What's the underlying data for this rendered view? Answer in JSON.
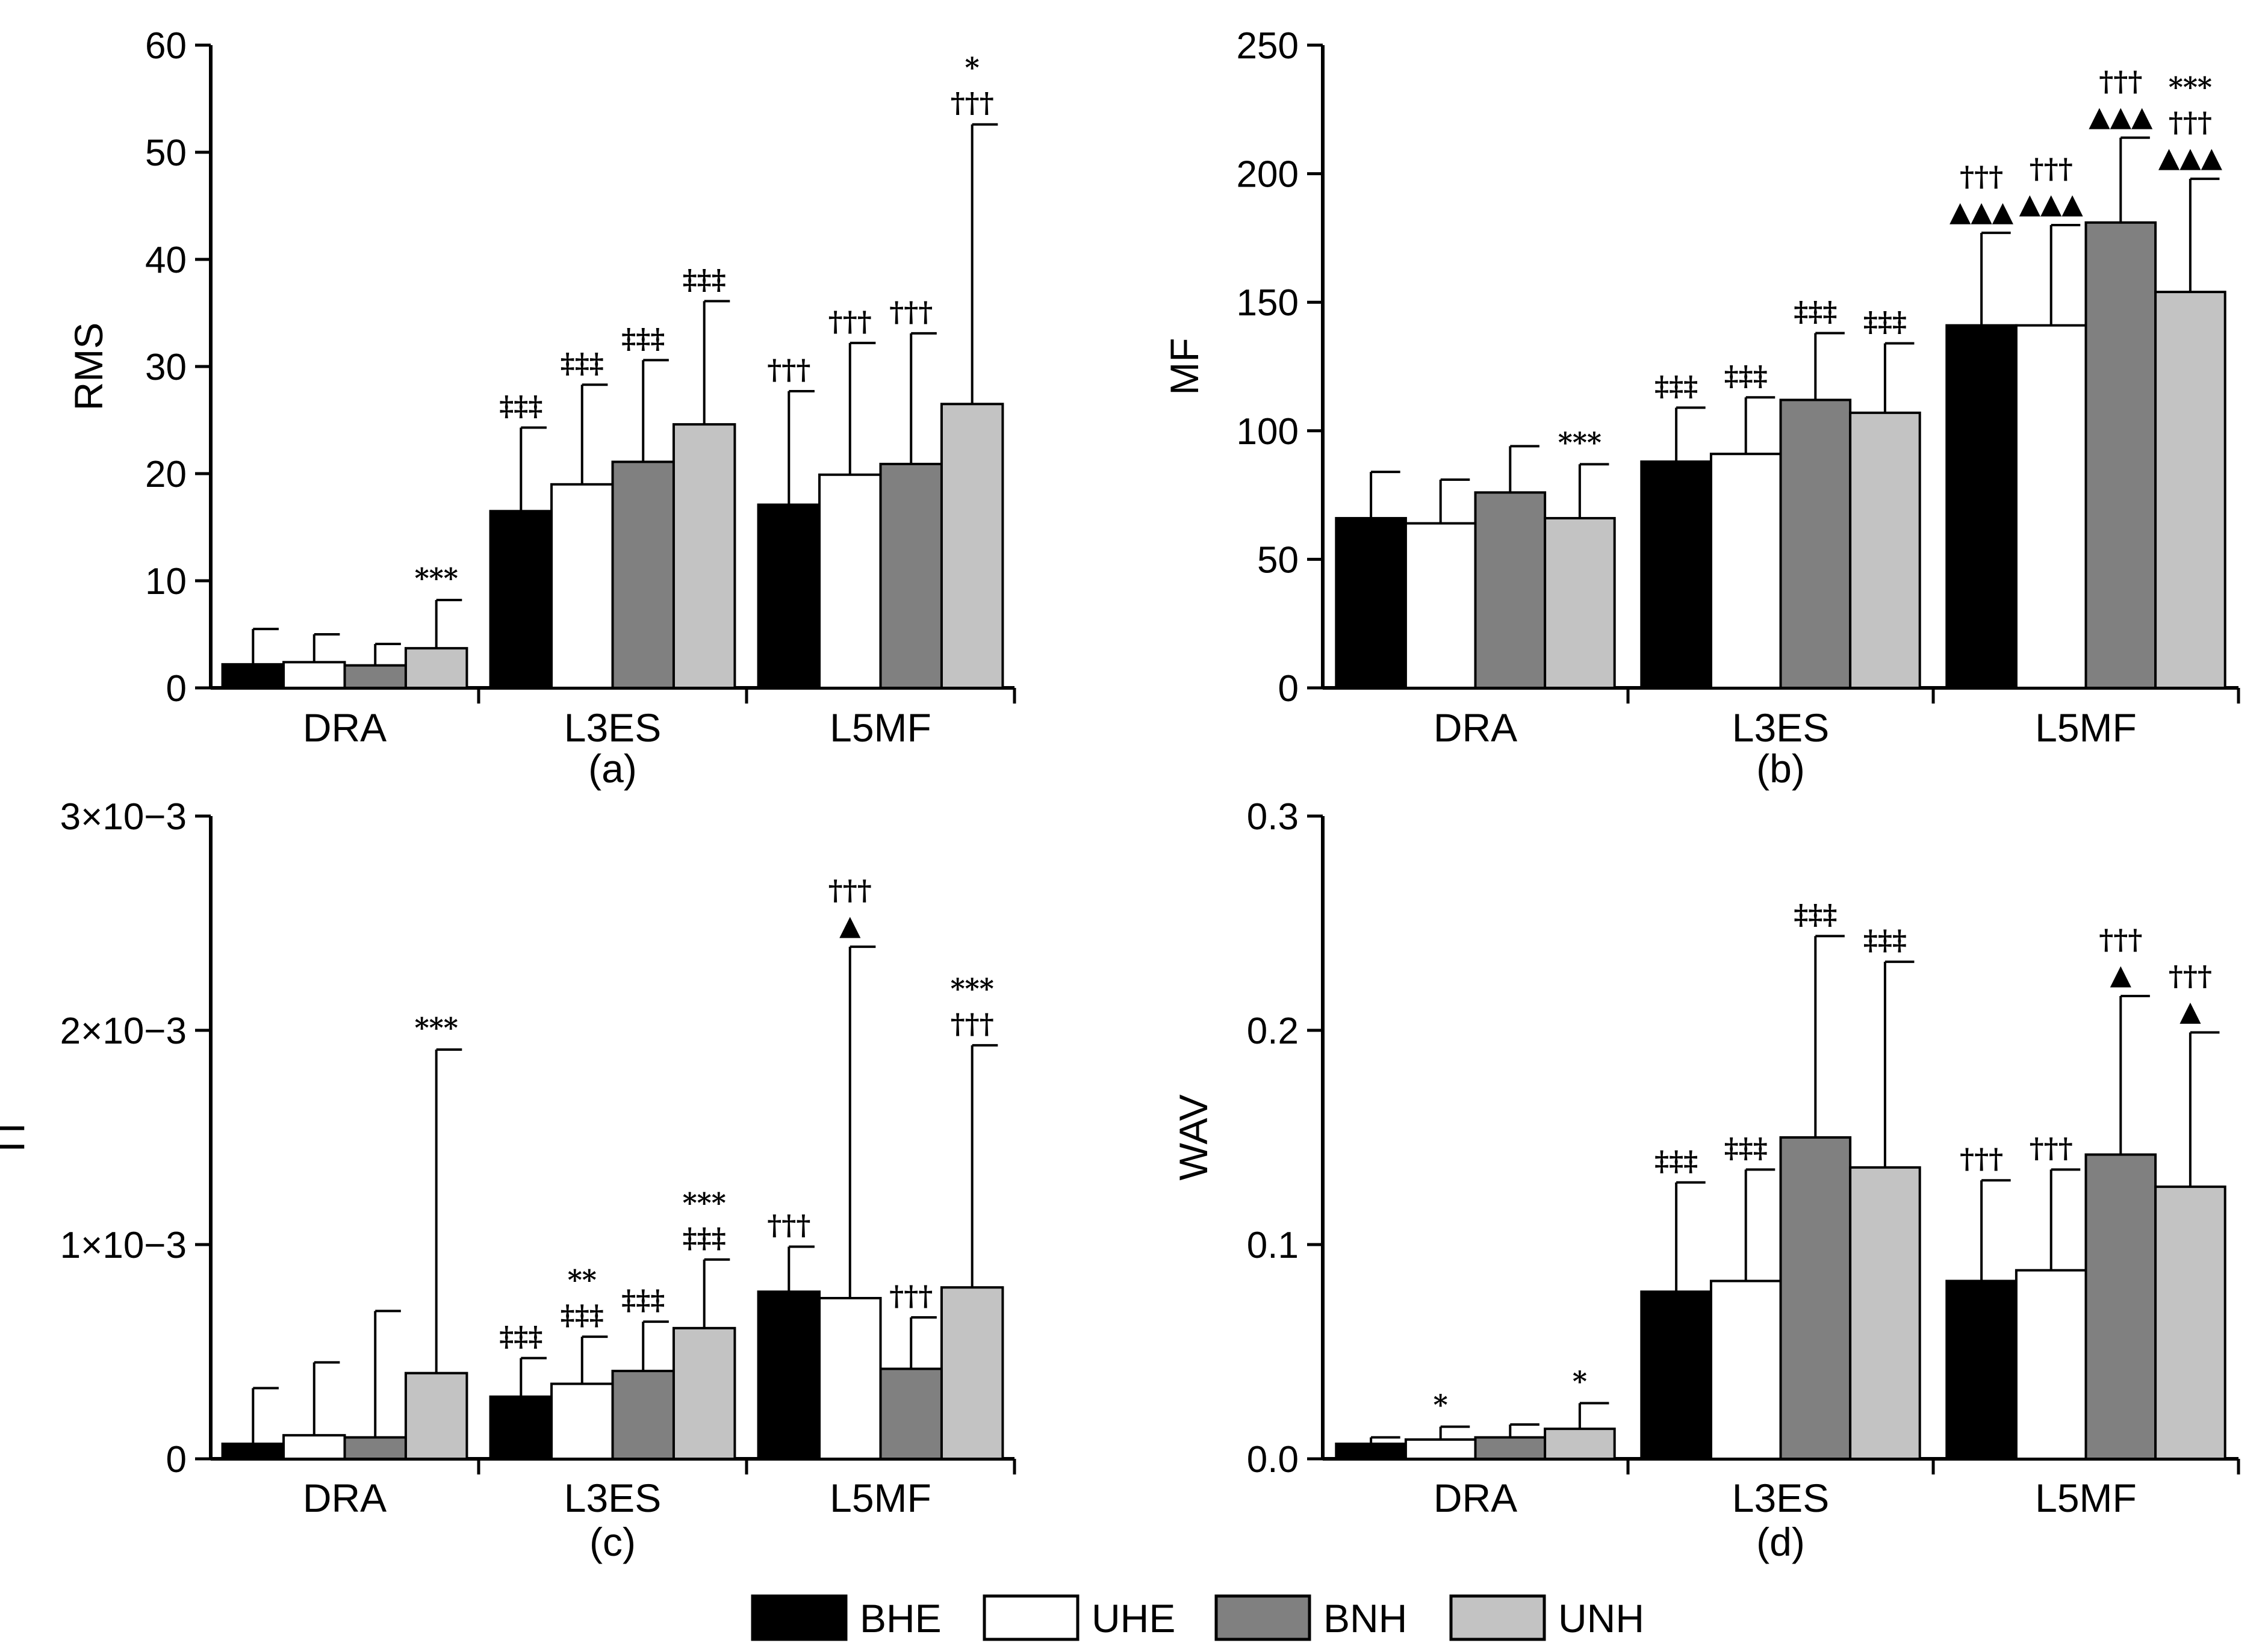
{
  "colors": {
    "BHE": "#000000",
    "UHE": "#ffffff",
    "BNH": "#808080",
    "UNH": "#c3c3c3"
  },
  "legend": [
    "BHE",
    "UHE",
    "BNH",
    "UNH"
  ],
  "chart_data": [
    {
      "type": "bar",
      "panel": "(a)",
      "ylabel": "RMS",
      "ylim": [
        0,
        60
      ],
      "yticks": [
        0,
        10,
        20,
        30,
        40,
        50,
        60
      ],
      "ytick_labels": [
        "0",
        "10",
        "20",
        "30",
        "40",
        "50",
        "60"
      ],
      "categories": [
        "DRA",
        "L3ES",
        "L5MF"
      ],
      "series": [
        {
          "name": "BHE",
          "values": [
            2.2,
            16.5,
            17.1
          ],
          "errors": [
            5.5,
            24.3,
            27.7
          ],
          "annotations": [
            [],
            [
              "‡‡‡"
            ],
            [
              "†††"
            ]
          ]
        },
        {
          "name": "UHE",
          "values": [
            2.4,
            19.0,
            19.9
          ],
          "errors": [
            5.0,
            28.3,
            32.2
          ],
          "annotations": [
            [],
            [
              "‡‡‡"
            ],
            [
              "†††"
            ]
          ]
        },
        {
          "name": "BNH",
          "values": [
            2.1,
            21.1,
            20.9
          ],
          "errors": [
            4.1,
            30.6,
            33.1
          ],
          "annotations": [
            [],
            [
              "‡‡‡"
            ],
            [
              "†††"
            ]
          ]
        },
        {
          "name": "UNH",
          "values": [
            3.7,
            24.6,
            26.5
          ],
          "errors": [
            8.2,
            36.1,
            52.6
          ],
          "annotations": [
            [
              "***"
            ],
            [
              "‡‡‡"
            ],
            [
              "*",
              "†††"
            ]
          ]
        }
      ]
    },
    {
      "type": "bar",
      "panel": "(b)",
      "ylabel": "MF",
      "ylim": [
        0,
        250
      ],
      "yticks": [
        0,
        50,
        100,
        150,
        200,
        250
      ],
      "ytick_labels": [
        "0",
        "50",
        "100",
        "150",
        "200",
        "250"
      ],
      "categories": [
        "DRA",
        "L3ES",
        "L5MF"
      ],
      "series": [
        {
          "name": "BHE",
          "values": [
            66,
            88,
            141
          ],
          "errors": [
            84,
            109,
            177
          ],
          "annotations": [
            [],
            [
              "‡‡‡"
            ],
            [
              "†††",
              "▲▲▲"
            ]
          ]
        },
        {
          "name": "UHE",
          "values": [
            64,
            91,
            141
          ],
          "errors": [
            81,
            113,
            180
          ],
          "annotations": [
            [],
            [
              "‡‡‡"
            ],
            [
              "†††",
              "▲▲▲"
            ]
          ]
        },
        {
          "name": "BNH",
          "values": [
            76,
            112,
            181
          ],
          "errors": [
            94,
            138,
            214
          ],
          "annotations": [
            [],
            [
              "‡‡‡"
            ],
            [
              "†††",
              "▲▲▲"
            ]
          ]
        },
        {
          "name": "UNH",
          "values": [
            66,
            107,
            154
          ],
          "errors": [
            87,
            134,
            198
          ],
          "annotations": [
            [
              "***"
            ],
            [
              "‡‡‡"
            ],
            [
              "***",
              "†††",
              "▲▲▲"
            ]
          ]
        }
      ]
    },
    {
      "type": "bar",
      "panel": "(c)",
      "ylabel": "Π",
      "ylim": [
        0,
        0.003
      ],
      "yticks": [
        0,
        0.001,
        0.002,
        0.003
      ],
      "ytick_labels": [
        "0",
        "1×10−3",
        "2×10−3",
        "3×10−3"
      ],
      "categories": [
        "DRA",
        "L3ES",
        "L5MF"
      ],
      "series": [
        {
          "name": "BHE",
          "values": [
            7e-05,
            0.00029,
            0.00078
          ],
          "errors": [
            0.00033,
            0.00047,
            0.00099
          ],
          "annotations": [
            [],
            [
              "‡‡‡"
            ],
            [
              "†††"
            ]
          ]
        },
        {
          "name": "UHE",
          "values": [
            0.00011,
            0.00035,
            0.00075
          ],
          "errors": [
            0.00045,
            0.00057,
            0.00239
          ],
          "annotations": [
            [],
            [
              "**",
              "‡‡‡"
            ],
            [
              "†††",
              "▲"
            ]
          ]
        },
        {
          "name": "BNH",
          "values": [
            0.0001,
            0.00041,
            0.00042
          ],
          "errors": [
            0.00069,
            0.00064,
            0.00066
          ],
          "annotations": [
            [],
            [
              "‡‡‡"
            ],
            [
              "†††"
            ]
          ]
        },
        {
          "name": "UNH",
          "values": [
            0.0004,
            0.00061,
            0.0008
          ],
          "errors": [
            0.00191,
            0.00093,
            0.00193
          ],
          "annotations": [
            [
              "***"
            ],
            [
              "***",
              "‡‡‡"
            ],
            [
              "***",
              "†††"
            ]
          ]
        }
      ]
    },
    {
      "type": "bar",
      "panel": "(d)",
      "ylabel": "WAV",
      "ylim": [
        0,
        0.3
      ],
      "yticks": [
        0,
        0.1,
        0.2,
        0.3
      ],
      "ytick_labels": [
        "0.0",
        "0.1",
        "0.2",
        "0.3"
      ],
      "categories": [
        "DRA",
        "L3ES",
        "L5MF"
      ],
      "series": [
        {
          "name": "BHE",
          "values": [
            0.007,
            0.078,
            0.083
          ],
          "errors": [
            0.01,
            0.129,
            0.13
          ],
          "annotations": [
            [],
            [
              "‡‡‡"
            ],
            [
              "†††"
            ]
          ]
        },
        {
          "name": "UHE",
          "values": [
            0.009,
            0.083,
            0.088
          ],
          "errors": [
            0.015,
            0.135,
            0.135
          ],
          "annotations": [
            [
              "*"
            ],
            [
              "‡‡‡"
            ],
            [
              "†††"
            ]
          ]
        },
        {
          "name": "BNH",
          "values": [
            0.01,
            0.15,
            0.142
          ],
          "errors": [
            0.016,
            0.244,
            0.216
          ],
          "annotations": [
            [],
            [
              "‡‡‡"
            ],
            [
              "†††",
              "▲"
            ]
          ]
        },
        {
          "name": "UNH",
          "values": [
            0.014,
            0.136,
            0.127
          ],
          "errors": [
            0.026,
            0.232,
            0.199
          ],
          "annotations": [
            [
              "*"
            ],
            [
              "‡‡‡"
            ],
            [
              "†††",
              "▲"
            ]
          ]
        }
      ]
    }
  ]
}
